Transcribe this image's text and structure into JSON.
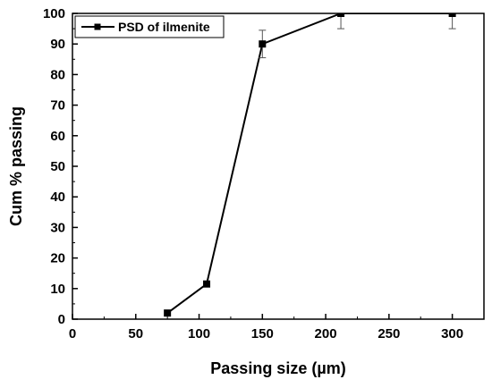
{
  "chart_data": {
    "type": "line",
    "title": "",
    "xlabel": "Passing size (µm)",
    "ylabel": "Cum % passing",
    "xlim": [
      0,
      325
    ],
    "ylim": [
      0,
      100
    ],
    "xticks": [
      0,
      50,
      100,
      150,
      200,
      250,
      300
    ],
    "yticks": [
      0,
      10,
      20,
      30,
      40,
      50,
      60,
      70,
      80,
      90,
      100
    ],
    "grid": false,
    "legend": {
      "position": "top-left"
    },
    "series": [
      {
        "name": "PSD of ilmenite",
        "marker": "square",
        "color": "#000000",
        "points": [
          {
            "x": 75,
            "y": 2,
            "err": 0
          },
          {
            "x": 106,
            "y": 11.5,
            "err": 0
          },
          {
            "x": 150,
            "y": 90,
            "err": 4.5
          },
          {
            "x": 212,
            "y": 100,
            "err": 5
          },
          {
            "x": 300,
            "y": 100,
            "err": 5
          }
        ]
      }
    ]
  }
}
